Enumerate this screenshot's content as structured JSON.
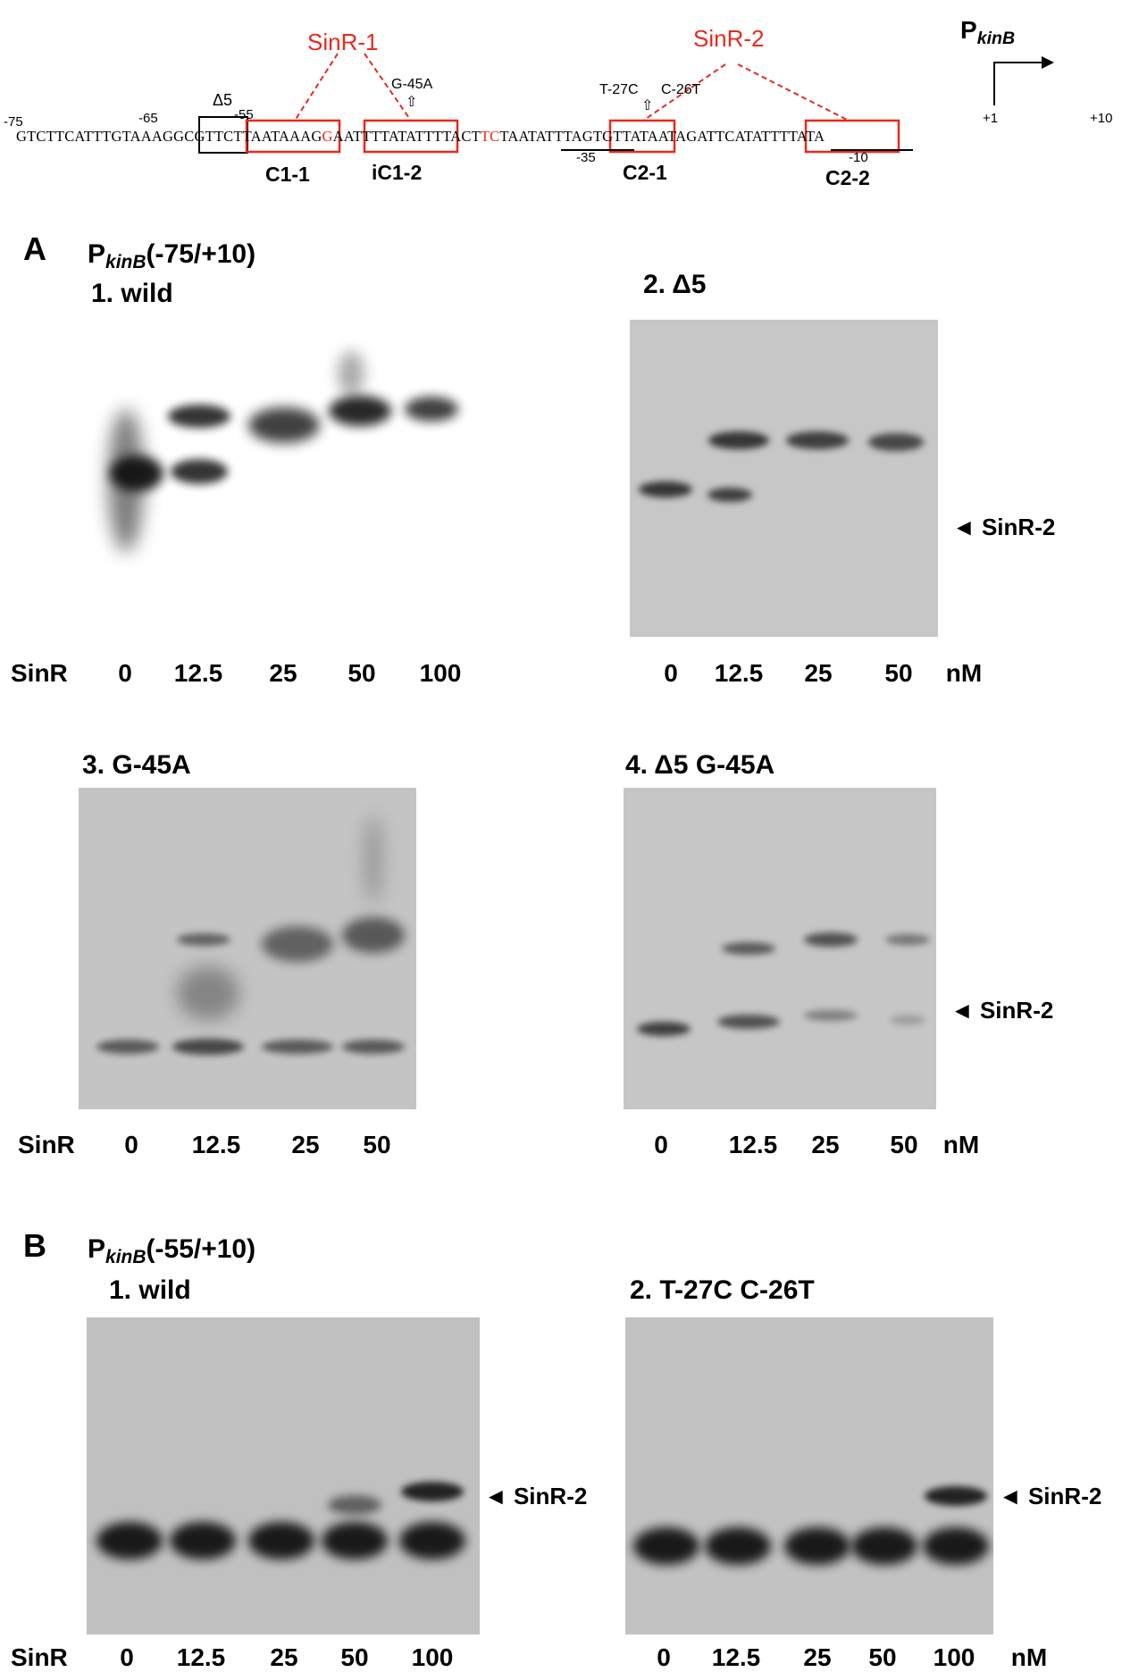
{
  "header": {
    "promoter_label": "P",
    "promoter_sub": "kinB",
    "sequence": "GTCTTCATTTGTAAAGGCGTTCTTAATAAAGGAATTTTATATTTTACTTCTAATATTTAGTGTTATAATAGATTCATATTTTATA",
    "positions": [
      "-75",
      "-65",
      "-55",
      "+1",
      "+10",
      "-35",
      "-10"
    ],
    "delta_label": "Δ5",
    "sites": [
      "SinR-1",
      "SinR-2"
    ],
    "mutations": [
      "G-45A",
      "T-27C",
      "C-26T"
    ],
    "arrow_glyph": "⇧",
    "boxes": [
      "C1-1",
      "iC1-2",
      "C2-1",
      "C2-2"
    ]
  },
  "panelA": {
    "letter": "A",
    "prefix": "P",
    "sub": "kinB",
    "range": "(-75/+10)",
    "gels": [
      {
        "title": "1. wild",
        "lanes": [
          "0",
          "12.5",
          "25",
          "50",
          "100"
        ],
        "row_label": "SinR",
        "unit": ""
      },
      {
        "title": "2. Δ5",
        "lanes": [
          "0",
          "12.5",
          "25",
          "50"
        ],
        "row_label": "",
        "unit": "nM",
        "arrow": "SinR-2"
      },
      {
        "title": "3. G-45A",
        "lanes": [
          "0",
          "12.5",
          "25",
          "50"
        ],
        "row_label": "SinR",
        "unit": ""
      },
      {
        "title": "4. Δ5 G-45A",
        "lanes": [
          "0",
          "12.5",
          "25",
          "50"
        ],
        "row_label": "",
        "unit": "nM",
        "arrow": "SinR-2"
      }
    ]
  },
  "panelB": {
    "letter": "B",
    "prefix": "P",
    "sub": "kinB",
    "range": "(-55/+10)",
    "gels": [
      {
        "title": "1. wild",
        "lanes": [
          "0",
          "12.5",
          "25",
          "50",
          "100"
        ],
        "row_label": "SinR",
        "unit": "",
        "arrow": "SinR-2"
      },
      {
        "title": "2. T-27C  C-26T",
        "lanes": [
          "0",
          "12.5",
          "25",
          "50",
          "100"
        ],
        "row_label": "",
        "unit": "nM",
        "arrow": "SinR-2"
      }
    ]
  },
  "colors": {
    "accent_red": "#e8291c",
    "gel_bg": "#c9c9c9",
    "band": "#111111"
  }
}
